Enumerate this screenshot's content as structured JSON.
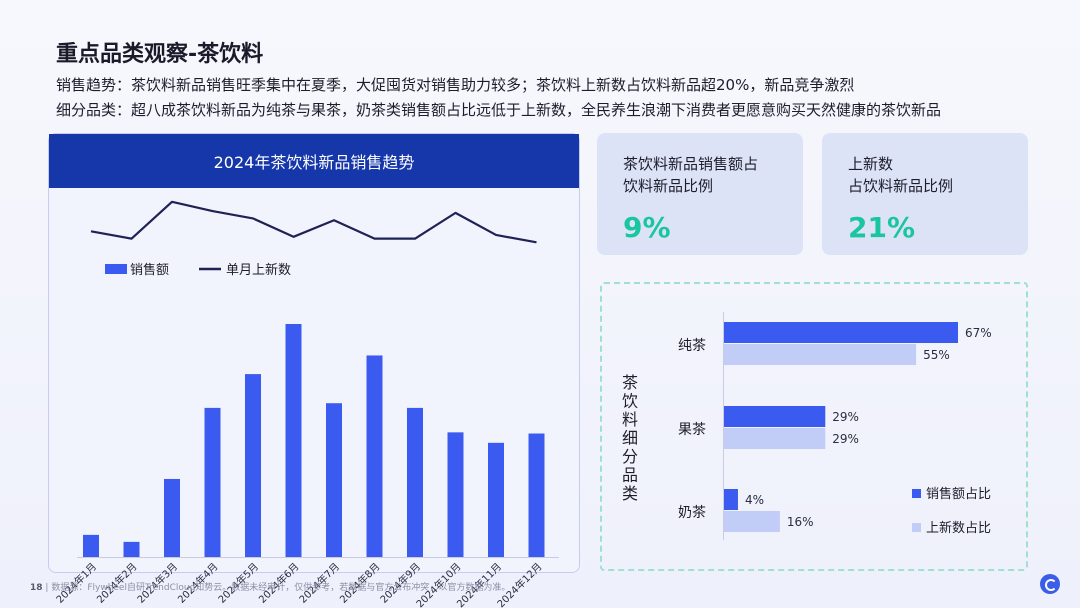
{
  "page": {
    "title": "重点品类观察-茶饮料",
    "subtitle1": "销售趋势：茶饮料新品销售旺季集中在夏季，大促囤货对销售助力较多；茶饮料上新数占饮料新品超20%，新品竞争激烈",
    "subtitle2": "细分品类：超八成茶饮料新品为纯茶与果茶，奶茶类销售额占比远低于上新数，全民养生浪潮下消费者更愿意购买天然健康的茶饮新品",
    "footer_num": "18",
    "footer_sep": "|",
    "footer_text": "数据源：Flywheel自研TrendCloud知势云。数据未经审计，仅供参考，若数据与官方公布冲突，以官方数据为准。"
  },
  "cards": [
    {
      "label_line1": "茶饮料新品销售额占",
      "label_line2": "饮料新品比例",
      "value": "9%"
    },
    {
      "label_line1": "上新数",
      "label_line2": "占饮料新品比例",
      "value": "21%"
    }
  ],
  "colors": {
    "bar": "#3b5bf0",
    "line": "#1f2254",
    "light_bar": "#c2cdf7",
    "accent_green": "#19c6a0",
    "header": "#1637a9"
  },
  "chart_data": [
    {
      "type": "bar",
      "title": "2024年茶饮料新品销售趋势",
      "categories": [
        "2024年1月",
        "2024年2月",
        "2024年3月",
        "2024年4月",
        "2024年5月",
        "2024年6月",
        "2024年7月",
        "2024年8月",
        "2024年9月",
        "2024年10月",
        "2024年11月",
        "2024年12月"
      ],
      "series": [
        {
          "name": "销售额",
          "type": "bar",
          "values": [
            9.5,
            6.5,
            33.5,
            64,
            78.5,
            100,
            66,
            86.5,
            64,
            53.5,
            49,
            53
          ]
        },
        {
          "name": "单月上新数",
          "type": "line",
          "values": [
            58,
            54,
            74,
            69,
            65,
            55,
            64,
            54,
            54,
            68,
            56,
            52
          ]
        }
      ],
      "ylim": [
        0,
        100
      ],
      "line_ylim": [
        0,
        100
      ],
      "grid": false,
      "legend": "top-left"
    },
    {
      "type": "bar",
      "orientation": "horizontal",
      "title": "茶饮料细分品类",
      "categories": [
        "纯茶",
        "果茶",
        "奶茶"
      ],
      "series": [
        {
          "name": "销售额占比",
          "values": [
            67,
            29,
            4
          ],
          "labels": [
            "67%",
            "29%",
            "4%"
          ]
        },
        {
          "name": "上新数占比",
          "values": [
            55,
            29,
            16
          ],
          "labels": [
            "55%",
            "29%",
            "16%"
          ]
        }
      ],
      "xlim": [
        0,
        67
      ],
      "legend": "bottom-right"
    }
  ]
}
